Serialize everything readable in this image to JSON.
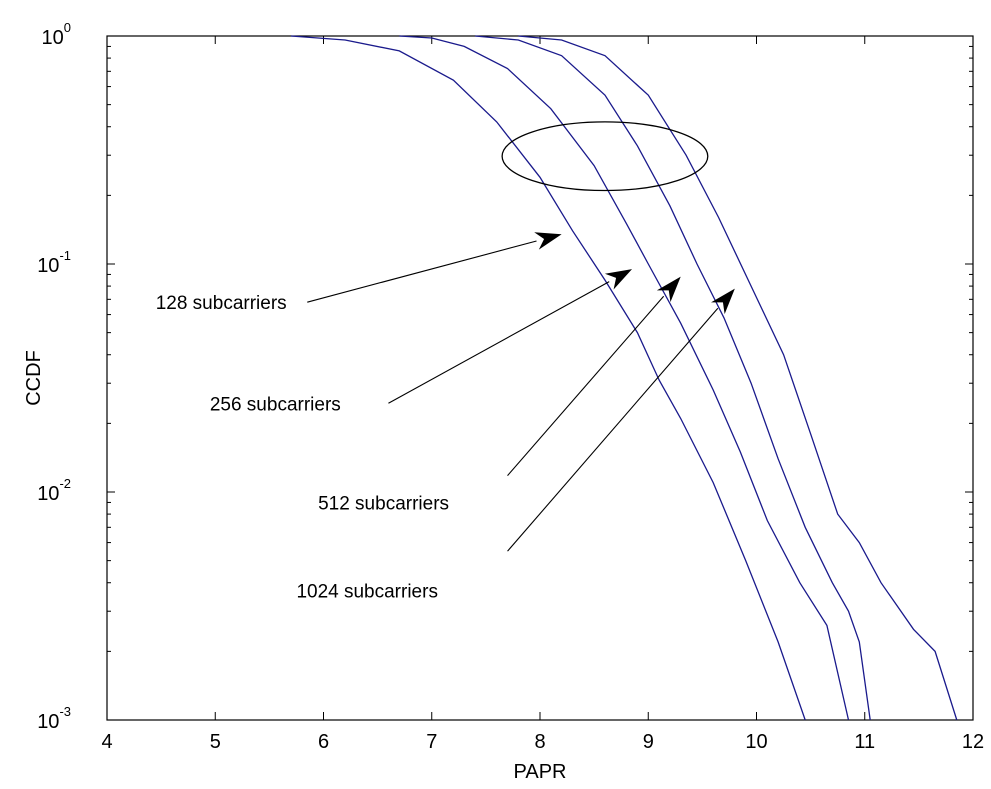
{
  "chart_data": {
    "type": "line",
    "title": "",
    "xlabel": "PAPR",
    "ylabel": "CCDF",
    "xlim": [
      4,
      12
    ],
    "ylim": [
      0.001,
      1
    ],
    "yscale": "log",
    "grid": false,
    "xticks": [
      4,
      5,
      6,
      7,
      8,
      9,
      10,
      11,
      12
    ],
    "xtick_labels": [
      "4",
      "5",
      "6",
      "7",
      "8",
      "9",
      "10",
      "11",
      "12"
    ],
    "yticks": [
      {
        "value": 1,
        "base": "10",
        "exp": "0"
      },
      {
        "value": 0.1,
        "base": "10",
        "exp": "-1"
      },
      {
        "value": 0.01,
        "base": "10",
        "exp": "-2"
      },
      {
        "value": 0.001,
        "base": "10",
        "exp": "-3"
      }
    ],
    "line_color": "#1a1a8c",
    "series": [
      {
        "x": [
          5.7,
          6.2,
          6.7,
          7.2,
          7.6,
          8.0,
          8.3,
          8.6,
          8.9,
          9.1,
          9.3,
          9.6,
          9.9,
          10.2,
          10.45
        ],
        "y": [
          1.0,
          0.96,
          0.86,
          0.64,
          0.42,
          0.24,
          0.14,
          0.085,
          0.05,
          0.031,
          0.021,
          0.011,
          0.005,
          0.0022,
          0.001
        ]
      },
      {
        "x": [
          6.7,
          7.0,
          7.3,
          7.7,
          8.1,
          8.5,
          8.8,
          9.0,
          9.3,
          9.6,
          9.85,
          10.1,
          10.4,
          10.65,
          10.85
        ],
        "y": [
          1.0,
          0.98,
          0.9,
          0.72,
          0.48,
          0.27,
          0.15,
          0.1,
          0.055,
          0.028,
          0.015,
          0.0075,
          0.004,
          0.0026,
          0.001
        ]
      },
      {
        "x": [
          7.4,
          7.8,
          8.2,
          8.6,
          8.9,
          9.2,
          9.45,
          9.7,
          9.95,
          10.2,
          10.45,
          10.7,
          10.85,
          10.95,
          11.05
        ],
        "y": [
          1.0,
          0.96,
          0.82,
          0.55,
          0.33,
          0.18,
          0.1,
          0.058,
          0.03,
          0.014,
          0.007,
          0.004,
          0.003,
          0.0022,
          0.001
        ]
      },
      {
        "x": [
          7.8,
          8.2,
          8.6,
          9.0,
          9.35,
          9.65,
          9.95,
          10.25,
          10.5,
          10.75,
          10.95,
          11.15,
          11.45,
          11.65,
          11.85
        ],
        "y": [
          1.0,
          0.96,
          0.82,
          0.55,
          0.3,
          0.16,
          0.08,
          0.04,
          0.018,
          0.008,
          0.006,
          0.004,
          0.0025,
          0.002,
          0.001
        ]
      }
    ],
    "ellipse": {
      "cx": 8.6,
      "cy": 0.3,
      "rx": 0.95,
      "y_top": 0.42,
      "y_bottom": 0.21
    },
    "annotations": [
      {
        "label": "128 subcarriers",
        "text_x": 4.45,
        "text_y": 0.068,
        "line_start_x": 5.85,
        "line_start_y": 0.068,
        "arrow_x": 8.2,
        "arrow_y": 0.135
      },
      {
        "label": "256 subcarriers",
        "text_x": 4.95,
        "text_y": 0.0245,
        "line_start_x": 6.6,
        "line_start_y": 0.0245,
        "arrow_x": 8.85,
        "arrow_y": 0.095
      },
      {
        "label": "512 subcarriers",
        "text_x": 5.95,
        "text_y": 0.009,
        "line_start_x": 7.7,
        "line_start_y": 0.0118,
        "arrow_x": 9.3,
        "arrow_y": 0.088
      },
      {
        "label": "1024 subcarriers",
        "text_x": 5.75,
        "text_y": 0.0037,
        "line_start_x": 7.7,
        "line_start_y": 0.0055,
        "arrow_x": 9.8,
        "arrow_y": 0.078
      }
    ]
  }
}
